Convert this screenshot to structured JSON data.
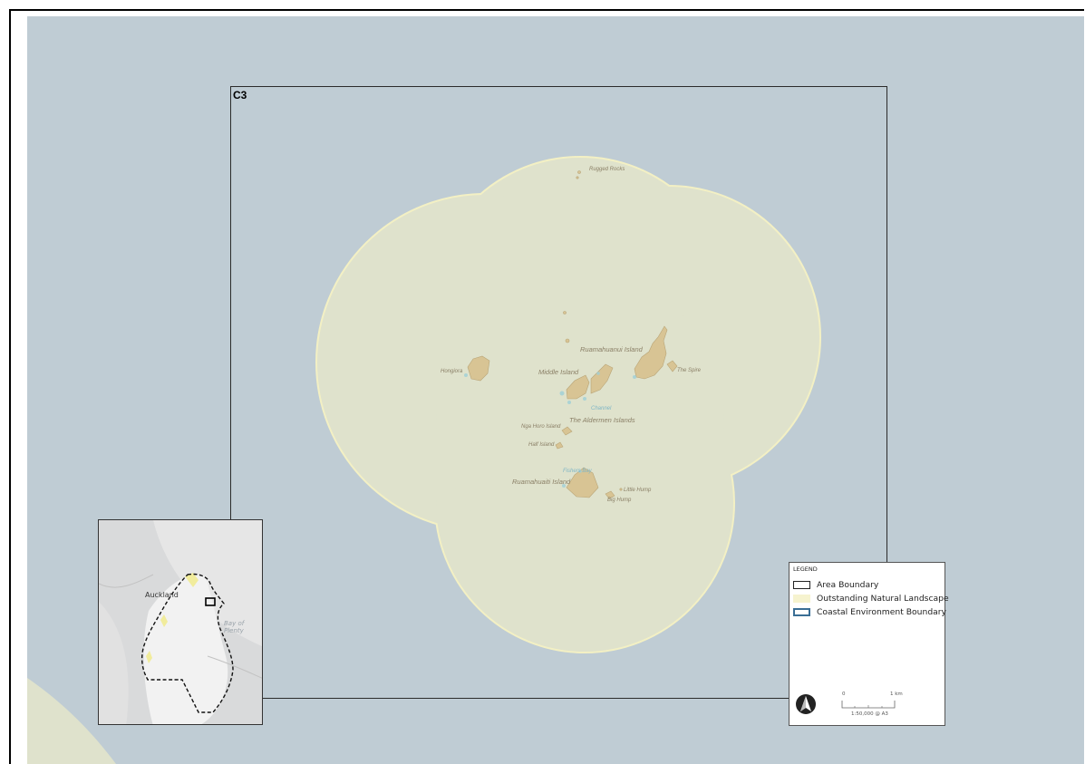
{
  "map": {
    "area_label": "C3",
    "colors": {
      "sea": "#bfccd4",
      "landscape_fill": "#dfe2cc",
      "landscape_edge": "#f3f0c4",
      "island": "#d8c494",
      "area_boundary": "#2b2b2b"
    },
    "places": {
      "rugged_rocks": "Rugged Rocks",
      "ruamahuanui": "Ruamahuanui Island",
      "hongiora": "Hongiora",
      "middle_island": "Middle Island",
      "the_spire": "The Spire",
      "the_aldermen": "The Aldermen Islands",
      "ngahoro": "Nga Horo Island",
      "half_island": "Half Island",
      "ruamahuaiti": "Ruamahuaiti Island",
      "little_hump": "Little Hump",
      "big_hump": "Big Hump",
      "channel": "Channel",
      "bay": "Fishers Bay"
    }
  },
  "inset": {
    "city_label": "Auckland",
    "sea_label": "Bay of Plenty",
    "icons": [
      "locator-box",
      "boundary-outline"
    ]
  },
  "legend": {
    "title": "LEGEND",
    "items": [
      {
        "label": "Area Boundary",
        "swatch": "outline-black"
      },
      {
        "label": "Outstanding Natural Landscape",
        "swatch": "fill-pale-yellow"
      },
      {
        "label": "Coastal Environment Boundary",
        "swatch": "outline-blue"
      }
    ],
    "scale": {
      "left_tick": "0",
      "right_tick": "1 km",
      "ratio": "1:50,000 @ A3"
    },
    "icons": [
      "north-arrow-icon"
    ]
  }
}
